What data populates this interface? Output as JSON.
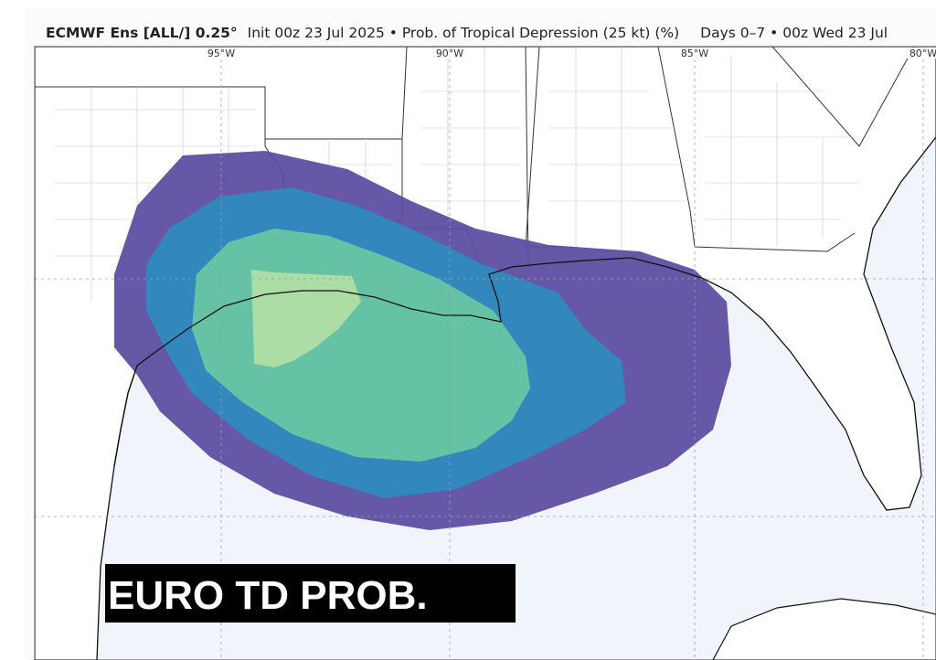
{
  "header": {
    "model": "ECMWF Ens [ALL/] 0.25°",
    "details": "Init 00z 23 Jul 2025 • Prob. of Tropical Depression (25 kt) (%)",
    "valid": "Days 0–7 • 00z Wed 23 Jul"
  },
  "map": {
    "longitude_labels": [
      "95°W",
      "90°W",
      "85°W",
      "80°W"
    ]
  },
  "overlay": {
    "label": "EURO TD PROB."
  }
}
